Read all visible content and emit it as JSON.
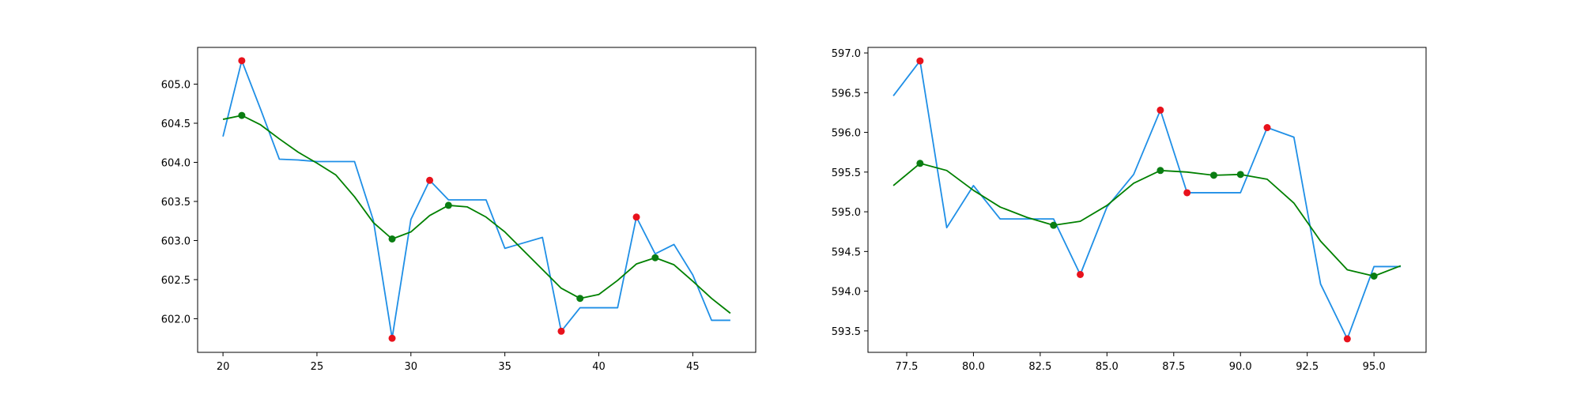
{
  "chart_data": [
    {
      "type": "line",
      "xlim": [
        18.65,
        48.35
      ],
      "ylim": [
        601.57,
        605.47
      ],
      "xticks": [
        20,
        25,
        30,
        35,
        40,
        45
      ],
      "xtick_labels": [
        "20",
        "25",
        "30",
        "35",
        "40",
        "45"
      ],
      "yticks": [
        602.0,
        602.5,
        603.0,
        603.5,
        604.0,
        604.5,
        605.0
      ],
      "ytick_labels": [
        "602.0",
        "602.5",
        "603.0",
        "603.5",
        "604.0",
        "604.5",
        "605.0"
      ],
      "grid": false,
      "series": [
        {
          "style": "line",
          "color": "#1f8fe6",
          "x": [
            20,
            21,
            22,
            23,
            24,
            25,
            26,
            27,
            28,
            29,
            30,
            31,
            32,
            33,
            34,
            35,
            36,
            37,
            38,
            39,
            40,
            41,
            42,
            43,
            44,
            45,
            46,
            47
          ],
          "y": [
            604.33,
            605.3,
            604.68,
            604.04,
            604.03,
            604.01,
            604.01,
            604.01,
            603.26,
            601.75,
            603.27,
            603.77,
            603.52,
            603.52,
            603.52,
            602.9,
            602.97,
            603.04,
            601.84,
            602.14,
            602.14,
            602.14,
            603.3,
            602.83,
            602.95,
            602.56,
            601.98,
            601.98
          ]
        },
        {
          "style": "line",
          "color": "#008000",
          "x": [
            20,
            21,
            22,
            23,
            24,
            25,
            26,
            27,
            28,
            29,
            30,
            31,
            32,
            33,
            34,
            35,
            36,
            37,
            38,
            39,
            40,
            41,
            42,
            43,
            44,
            45,
            46,
            47
          ],
          "y": [
            604.55,
            604.6,
            604.48,
            604.3,
            604.13,
            603.99,
            603.84,
            603.56,
            603.23,
            603.02,
            603.11,
            603.32,
            603.45,
            603.43,
            603.3,
            603.11,
            602.87,
            602.63,
            602.39,
            602.26,
            602.31,
            602.49,
            602.7,
            602.78,
            602.69,
            602.48,
            602.26,
            602.07
          ]
        },
        {
          "style": "scatter",
          "color": "#e8121c",
          "x": [
            21,
            29,
            31,
            38,
            42
          ],
          "y": [
            605.3,
            601.75,
            603.77,
            601.84,
            603.3
          ]
        },
        {
          "style": "scatter",
          "color": "#0a7d12",
          "x": [
            21,
            29,
            32,
            39,
            43
          ],
          "y": [
            604.6,
            603.02,
            603.45,
            602.26,
            602.78
          ]
        }
      ]
    },
    {
      "type": "line",
      "xlim": [
        76.05,
        96.95
      ],
      "ylim": [
        593.23,
        597.07
      ],
      "xticks": [
        77.5,
        80.0,
        82.5,
        85.0,
        87.5,
        90.0,
        92.5,
        95.0
      ],
      "xtick_labels": [
        "77.5",
        "80.0",
        "82.5",
        "85.0",
        "87.5",
        "90.0",
        "92.5",
        "95.0"
      ],
      "yticks": [
        593.5,
        594.0,
        594.5,
        595.0,
        595.5,
        596.0,
        596.5,
        597.0
      ],
      "ytick_labels": [
        "593.5",
        "594.0",
        "594.5",
        "595.0",
        "595.5",
        "596.0",
        "596.5",
        "597.0"
      ],
      "grid": false,
      "series": [
        {
          "style": "line",
          "color": "#1f8fe6",
          "x": [
            77,
            78,
            79,
            80,
            81,
            82,
            83,
            84,
            85,
            86,
            87,
            88,
            89,
            90,
            91,
            92,
            93,
            94,
            95,
            96
          ],
          "y": [
            596.46,
            596.9,
            594.8,
            595.33,
            594.91,
            594.91,
            594.91,
            594.21,
            595.06,
            595.47,
            596.28,
            595.24,
            595.24,
            595.24,
            596.06,
            595.94,
            594.09,
            593.4,
            594.31,
            594.31
          ]
        },
        {
          "style": "line",
          "color": "#008000",
          "x": [
            77,
            78,
            79,
            80,
            81,
            82,
            83,
            84,
            85,
            86,
            87,
            88,
            89,
            90,
            91,
            92,
            93,
            94,
            95,
            96
          ],
          "y": [
            595.33,
            595.61,
            595.52,
            595.27,
            595.06,
            594.93,
            594.83,
            594.88,
            595.08,
            595.36,
            595.52,
            595.5,
            595.46,
            595.47,
            595.41,
            595.11,
            594.63,
            594.27,
            594.19,
            594.32
          ]
        },
        {
          "style": "scatter",
          "color": "#e8121c",
          "x": [
            78,
            84,
            87,
            88,
            91,
            94
          ],
          "y": [
            596.9,
            594.21,
            596.28,
            595.24,
            596.06,
            593.4
          ]
        },
        {
          "style": "scatter",
          "color": "#0a7d12",
          "x": [
            78,
            83,
            87,
            89,
            90,
            95
          ],
          "y": [
            595.61,
            594.83,
            595.52,
            595.46,
            595.47,
            594.19
          ]
        }
      ]
    }
  ]
}
